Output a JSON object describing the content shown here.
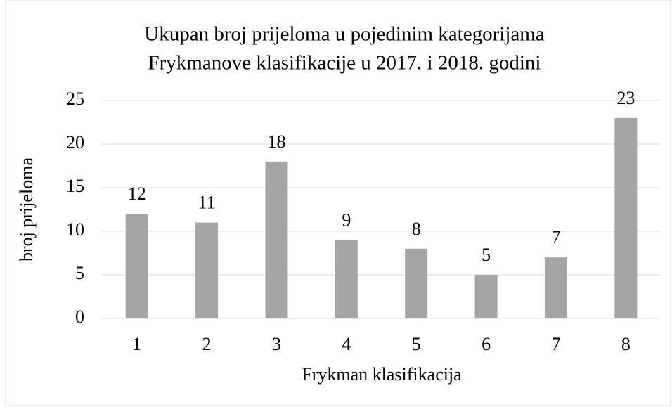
{
  "chart_data": {
    "type": "bar",
    "title": [
      "Ukupan broj prijeloma u pojedinim kategorijama",
      "Frykmanove klasifikacije u 2017. i 2018. godini"
    ],
    "x_label": "Frykman klasifikacija",
    "y_label": "broj prijeloma",
    "categories": [
      "1",
      "2",
      "3",
      "4",
      "5",
      "6",
      "7",
      "8"
    ],
    "values": [
      12,
      11,
      18,
      9,
      8,
      5,
      7,
      23
    ],
    "color": "#a5a5a5",
    "ylim": [
      0,
      25
    ],
    "yticks": [
      0,
      5,
      10,
      15,
      20,
      25
    ],
    "grid": true
  }
}
